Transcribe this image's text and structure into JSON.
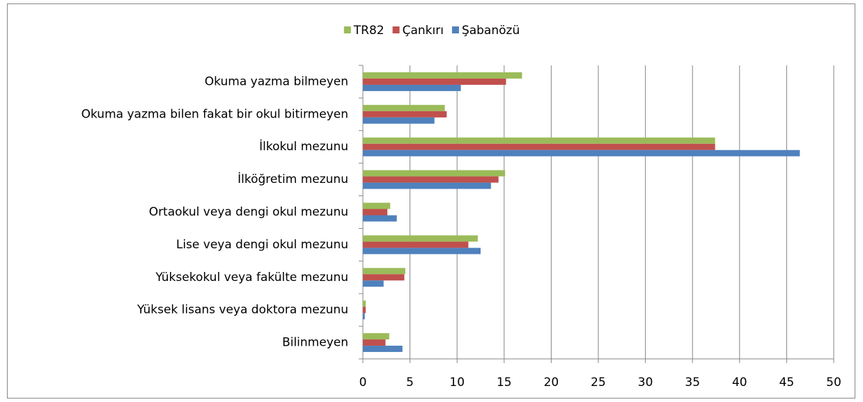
{
  "chart_data": {
    "type": "bar",
    "orientation": "horizontal",
    "categories": [
      "Okuma yazma bilmeyen",
      "Okuma yazma bilen fakat bir okul bitirmeyen",
      "İlkokul mezunu",
      "İlköğretim mezunu",
      "Ortaokul veya dengi okul mezunu",
      "Lise veya dengi okul mezunu",
      "Yüksekokul veya fakülte mezunu",
      "Yüksek lisans veya doktora mezunu",
      "Bilinmeyen"
    ],
    "series": [
      {
        "name": "TR82",
        "color": "#9bbb59",
        "values": [
          16.9,
          8.7,
          37.4,
          15.1,
          2.9,
          12.2,
          4.5,
          0.3,
          2.8
        ]
      },
      {
        "name": "Çankırı",
        "color": "#c0504d",
        "values": [
          15.2,
          8.9,
          37.4,
          14.4,
          2.6,
          11.2,
          4.4,
          0.3,
          2.4
        ]
      },
      {
        "name": "Şabanözü",
        "color": "#4f81bd",
        "values": [
          10.4,
          7.6,
          46.4,
          13.6,
          3.6,
          12.5,
          2.2,
          0.2,
          4.2
        ]
      }
    ],
    "xlim": [
      0,
      50
    ],
    "xticks": [
      0,
      5,
      10,
      15,
      20,
      25,
      30,
      35,
      40,
      45,
      50
    ],
    "grid": true,
    "legend": "top"
  }
}
